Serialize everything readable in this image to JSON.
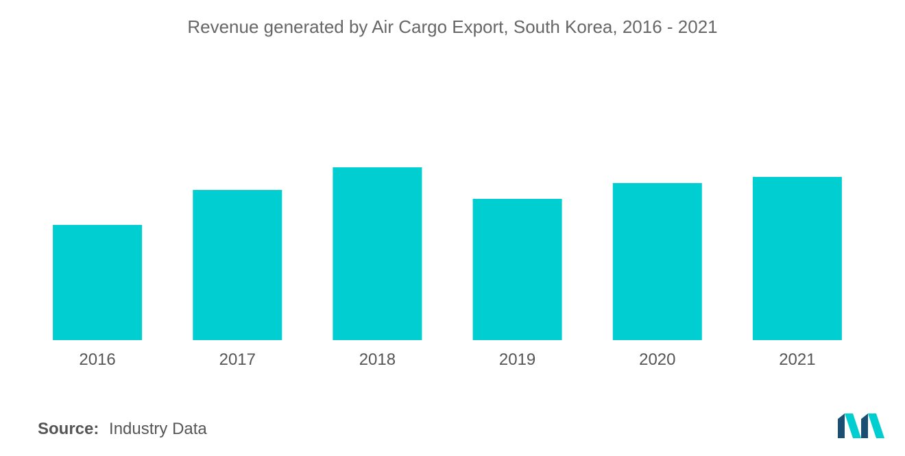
{
  "chart_data": {
    "type": "bar",
    "title": "Revenue generated by Air Cargo Export, South Korea, 2016 - 2021",
    "xlabel": "",
    "ylabel": "",
    "categories": [
      "2016",
      "2017",
      "2018",
      "2019",
      "2020",
      "2021"
    ],
    "values": [
      168,
      219,
      252,
      206,
      229,
      238
    ],
    "ylim": [
      0,
      300
    ],
    "grid": false,
    "legend": "none",
    "colors": {
      "bar": "#00CED1"
    }
  },
  "source": {
    "label": "Source:",
    "value": "Industry Data"
  },
  "logo": {
    "icon": "mordor-intelligence-logo-icon",
    "colors": [
      "#1B4F72",
      "#00CED1"
    ]
  }
}
